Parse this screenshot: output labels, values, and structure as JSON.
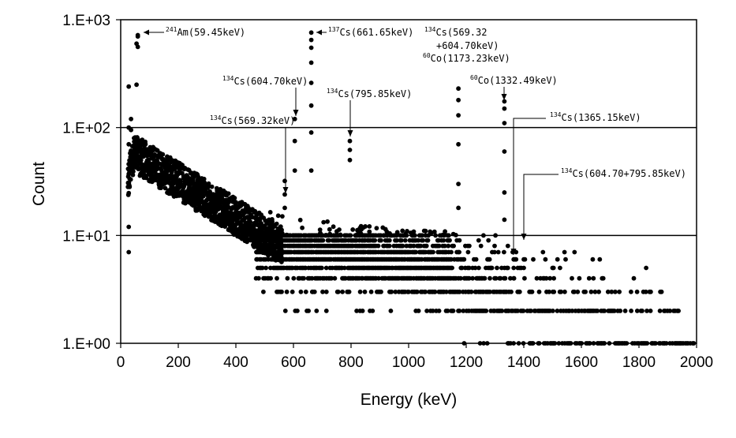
{
  "chart_data": {
    "type": "scatter",
    "title": "",
    "xlabel": "Energy (keV)",
    "ylabel": "Count",
    "xlim": [
      0,
      2000
    ],
    "ylim": [
      1,
      1000
    ],
    "y_scale": "log",
    "x_ticks": [
      0,
      200,
      400,
      600,
      800,
      1000,
      1200,
      1400,
      1600,
      1800,
      2000
    ],
    "x_tick_labels": [
      "0",
      "200",
      "400",
      "600",
      "800",
      "1000",
      "1200",
      "1400",
      "1600",
      "1800",
      "2000"
    ],
    "y_ticks": [
      1,
      10,
      100,
      1000
    ],
    "y_tick_labels": [
      "1.E+00",
      "1.E+01",
      "1.E+02",
      "1.E+03"
    ],
    "grid": "horizontal",
    "marker_color": "#000000",
    "peaks": [
      {
        "x": 59.45,
        "y": 720
      },
      {
        "x": 661.65,
        "y": 760
      },
      {
        "x": 569.32,
        "y": 26
      },
      {
        "x": 604.7,
        "y": 120
      },
      {
        "x": 795.85,
        "y": 75
      },
      {
        "x": 1173.23,
        "y": 230
      },
      {
        "x": 1332.49,
        "y": 170
      },
      {
        "x": 1365.15,
        "y": 6
      },
      {
        "x": 1400.55,
        "y": 6
      }
    ],
    "annotations": [
      {
        "sup": "241",
        "text": "Am(59.45keV)"
      },
      {
        "sup": "137",
        "text": "Cs(661.65keV)"
      },
      {
        "sup": "134",
        "text": "Cs(569.32",
        "text2": "+604.70keV)"
      },
      {
        "sup": "60",
        "text": "Co(1173.23keV)"
      },
      {
        "sup": "134",
        "text": "Cs(604.70keV)"
      },
      {
        "sup": "60",
        "text": "Co(1332.49keV)"
      },
      {
        "sup": "134",
        "text": "Cs(795.85keV)"
      },
      {
        "sup": "134",
        "text": "Cs(569.32keV)"
      },
      {
        "sup": "134",
        "text": "Cs(1365.15keV)"
      },
      {
        "sup": "134",
        "text": "Cs(604.70+795.85keV)"
      }
    ]
  }
}
